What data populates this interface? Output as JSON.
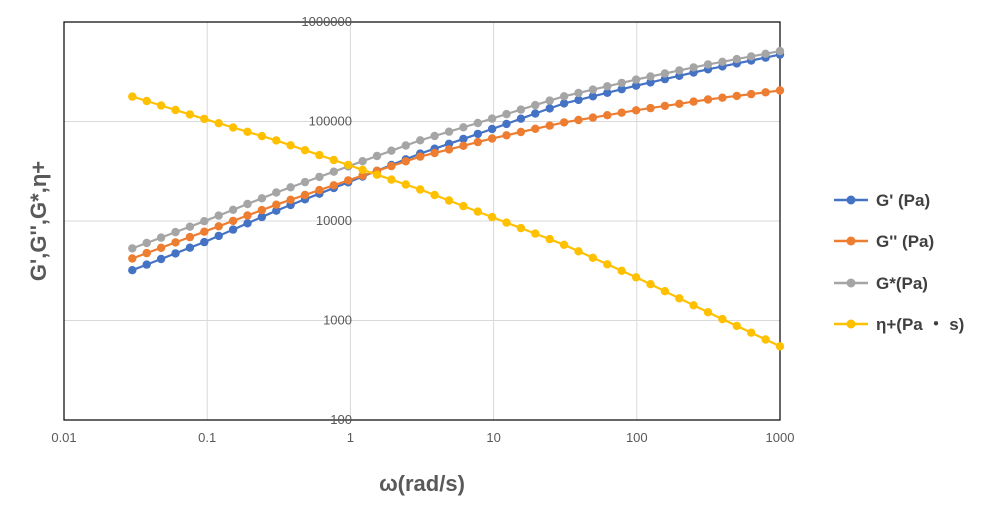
{
  "chart_data": {
    "type": "line",
    "xlabel": "ω(rad/s)",
    "ylabel": "G',G'',G*,η+",
    "x_scale": "log",
    "y_scale": "log",
    "xlim": [
      0.01,
      1000
    ],
    "ylim": [
      100,
      1000000
    ],
    "x_ticks": [
      "0.01",
      "0.1",
      "1",
      "10",
      "100",
      "1000"
    ],
    "y_ticks": [
      "100",
      "1000",
      "10000",
      "100000",
      "1000000"
    ],
    "grid": true,
    "legend_position": "right",
    "series": [
      {
        "name": "G' (Pa)",
        "color": "#4472C4",
        "x": [
          0.03,
          0.1,
          0.3,
          1,
          3,
          10,
          30,
          100,
          300,
          1000
        ],
        "y": [
          3200,
          6300,
          12600,
          25000,
          47000,
          85000,
          150000,
          230000,
          330000,
          470000
        ]
      },
      {
        "name": "G'' (Pa)",
        "color": "#ED7D31",
        "x": [
          0.03,
          0.1,
          0.3,
          1,
          3,
          10,
          30,
          100,
          300,
          1000
        ],
        "y": [
          4200,
          8000,
          14500,
          26000,
          44000,
          68000,
          97000,
          130000,
          165000,
          205000
        ]
      },
      {
        "name": "G*(Pa)",
        "color": "#A5A5A5",
        "x": [
          0.03,
          0.1,
          0.3,
          1,
          3,
          10,
          30,
          100,
          300,
          1000
        ],
        "y": [
          5300,
          10200,
          19200,
          36000,
          64000,
          108000,
          177000,
          265000,
          370000,
          510000
        ]
      },
      {
        "name": "η+(Pa ・ s)",
        "color": "#FFC000",
        "x": [
          0.03,
          0.1,
          0.3,
          1,
          3,
          10,
          30,
          100,
          300,
          1000
        ],
        "y": [
          178000,
          104000,
          65000,
          36000,
          21000,
          10800,
          5900,
          2700,
          1250,
          550
        ]
      }
    ]
  }
}
